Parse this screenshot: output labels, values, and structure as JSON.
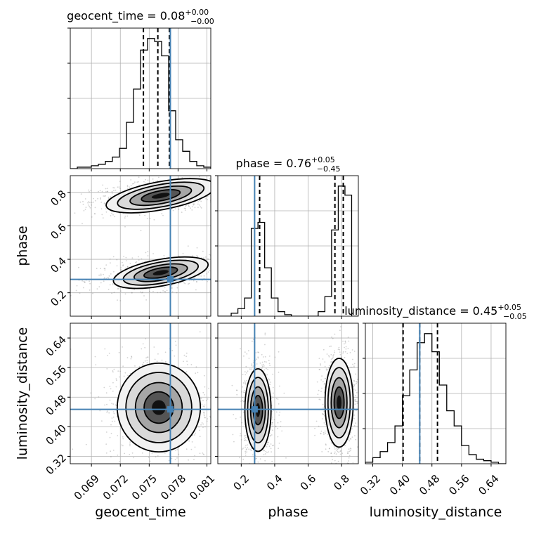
{
  "colors": {
    "truth": "#4682b4",
    "hist": "#000000",
    "scatter": "#808080",
    "grid": "#b0b0b0"
  },
  "chart_data": {
    "type": "corner",
    "parameters": [
      {
        "name": "geocent_time",
        "xlabel": "geocent_time",
        "ylabel": "",
        "title": "geocent_time = 0.08",
        "title_main": "geocent_time = 0.08",
        "title_sup": "+0.00",
        "title_sub": "−0.00",
        "range": [
          0.0668,
          0.0814
        ],
        "ticks": [
          0.069,
          0.072,
          0.075,
          0.078,
          0.081
        ],
        "tick_labels": [
          "0.069",
          "0.072",
          "0.075",
          "0.078",
          "0.081"
        ],
        "truth": 0.0772,
        "quantiles": [
          0.0744,
          0.0759,
          0.0771
        ],
        "hist_bins": [
          0.0668,
          0.0814
        ],
        "hist_counts": [
          0,
          1,
          1,
          2,
          3,
          5,
          8,
          14,
          32,
          55,
          82,
          90,
          88,
          78,
          40,
          20,
          12,
          5,
          2,
          1
        ]
      },
      {
        "name": "phase",
        "xlabel": "phase",
        "ylabel": "phase",
        "title": "phase = 0.76",
        "title_main": "phase = 0.76",
        "title_sup": "+0.05",
        "title_sub": "−0.45",
        "range": [
          0.06,
          0.9
        ],
        "ticks": [
          0.2,
          0.4,
          0.6,
          0.8
        ],
        "tick_labels": [
          "0.2",
          "0.4",
          "0.6",
          "0.8"
        ],
        "truth": 0.28,
        "quantiles": [
          0.31,
          0.76,
          0.81
        ],
        "hist_bins": [
          0.06,
          0.9
        ],
        "hist_counts": [
          0,
          0,
          2,
          5,
          12,
          58,
          62,
          32,
          12,
          3,
          1,
          0,
          0,
          0,
          0,
          3,
          13,
          57,
          86,
          80,
          0
        ]
      },
      {
        "name": "luminosity_distance",
        "xlabel": "luminosity_distance",
        "ylabel": "luminosity_distance",
        "title": "luminosity_distance = 0.45",
        "title_main": "luminosity_distance = 0.45",
        "title_sup": "+0.05",
        "title_sub": "−0.05",
        "range": [
          0.3,
          0.68
        ],
        "ticks": [
          0.32,
          0.4,
          0.48,
          0.56,
          0.64
        ],
        "tick_labels": [
          "0.32",
          "0.40",
          "0.48",
          "0.56",
          "0.64"
        ],
        "truth": 0.447,
        "quantiles": [
          0.402,
          0.447,
          0.495
        ],
        "hist_bins": [
          0.3,
          0.68
        ],
        "hist_counts": [
          1,
          4,
          8,
          14,
          25,
          45,
          62,
          80,
          86,
          74,
          52,
          35,
          25,
          12,
          6,
          3,
          2,
          1,
          0
        ]
      }
    ],
    "panels_2d": [
      {
        "x": "geocent_time",
        "y": "phase",
        "blobs": [
          {
            "cx": 0.0762,
            "cy": 0.78,
            "sx": 0.0024,
            "sy": 0.035,
            "rho": 0.35,
            "w": 1.0
          },
          {
            "cx": 0.0762,
            "cy": 0.32,
            "sx": 0.0022,
            "sy": 0.035,
            "rho": 0.35,
            "w": 0.8
          }
        ]
      },
      {
        "x": "geocent_time",
        "y": "luminosity_distance",
        "blobs": [
          {
            "cx": 0.076,
            "cy": 0.452,
            "sx": 0.0018,
            "sy": 0.05,
            "rho": 0.0,
            "w": 1.0
          }
        ]
      },
      {
        "x": "phase",
        "y": "luminosity_distance",
        "blobs": [
          {
            "cx": 0.3,
            "cy": 0.445,
            "sx": 0.035,
            "sy": 0.05,
            "rho": 0.0,
            "w": 0.75
          },
          {
            "cx": 0.785,
            "cy": 0.465,
            "sx": 0.035,
            "sy": 0.05,
            "rho": 0.0,
            "w": 1.0
          }
        ]
      }
    ]
  }
}
